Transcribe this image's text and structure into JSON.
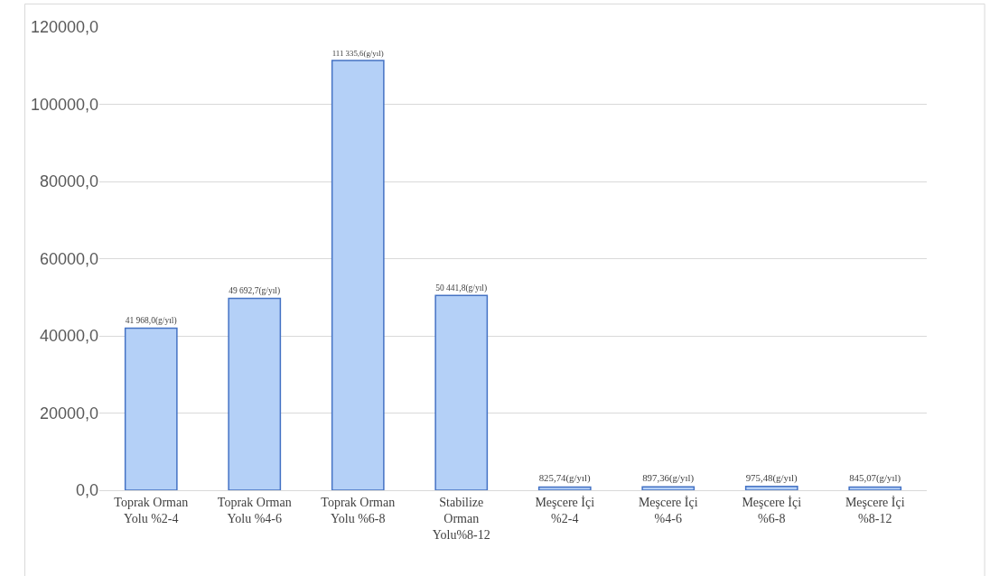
{
  "chart_data": {
    "type": "bar",
    "categories": [
      "Toprak Orman Yolu %2-4",
      "Toprak Orman Yolu %4-6",
      "Toprak Orman Yolu %6-8",
      "Stabilize Orman Yolu%8-12",
      "Meşcere İçi %2-4",
      "Meşcere İçi %4-6",
      "Meşcere İçi %6-8",
      "Meşcere İçi %8-12"
    ],
    "values": [
      41968.0,
      49692.7,
      111335.6,
      50441.8,
      825.74,
      897.36,
      975.48,
      845.07
    ],
    "value_labels": [
      "41 968,0(g/yıl)",
      "49 692,7(g/yıl)",
      "111 335,6(g/yıl)",
      "50 441,8(g/yıl)",
      "825,74(g/yıl)",
      "897,36(g/yıl)",
      "975,48(g/yıl)",
      "845,07(g/yıl)"
    ],
    "color": "#b4d0f7",
    "ylim": [
      0,
      120000
    ],
    "yticks": [
      {
        "value": 0,
        "label": "0,0"
      },
      {
        "value": 20000,
        "label": "20000,0"
      },
      {
        "value": 40000,
        "label": "40000,0"
      },
      {
        "value": 60000,
        "label": "60000,0"
      },
      {
        "value": 80000,
        "label": "80000,0"
      },
      {
        "value": 100000,
        "label": "100000,0"
      },
      {
        "value": 120000,
        "label": "120000,0"
      }
    ],
    "grid": "y"
  }
}
